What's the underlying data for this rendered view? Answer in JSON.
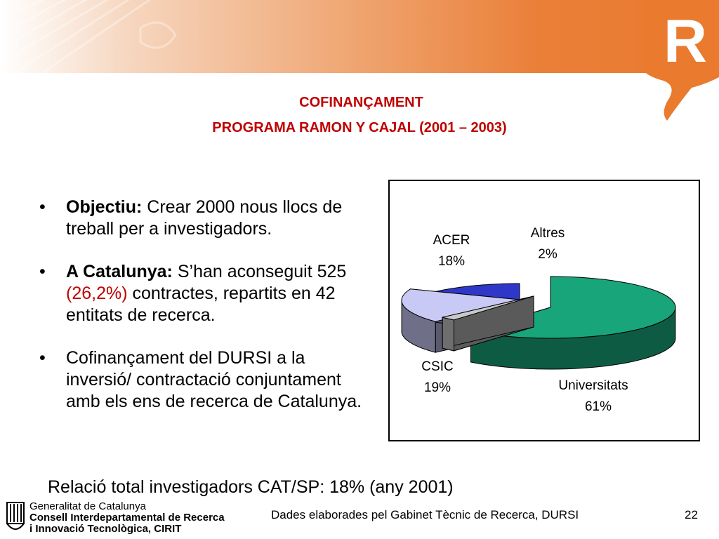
{
  "header": {
    "title_line1": "COFINANÇAMENT",
    "title_line2": "PROGRAMA RAMON Y CAJAL (2001 – 2003)",
    "logo_letter": "R"
  },
  "bullets": [
    {
      "label": "Objectiu:",
      "text": " Crear 2000 nous llocs de treball per a investigadors."
    },
    {
      "label": "A Catalunya:",
      "text_before": " S’han aconseguit 525 ",
      "highlight": "(26,2%)",
      "text_after": " contractes, repartits en 42 entitats de recerca."
    },
    {
      "text": "Cofinançament del DURSI a la inversió/ contractació conjuntament amb els ens de recerca de Catalunya."
    }
  ],
  "summary": "Relació total investigadors CAT/SP: 18% (any 2001)",
  "footer": {
    "org_line1": "Generalitat de Catalunya",
    "org_line2": "Consell Interdepartamental de Recerca",
    "org_line3": "i Innovació Tecnològica, CIRIT",
    "source": "Dades elaborades pel Gabinet Tècnic de Recerca, DURSI",
    "page": "22"
  },
  "colors": {
    "title": "#c00000",
    "header_orange": "#e97a2e"
  },
  "chart_data": {
    "type": "pie",
    "style": "3d-exploded",
    "slices": [
      {
        "label": "Universitats",
        "value": 61,
        "value_label": "61%",
        "color": "#19a57a"
      },
      {
        "label": "Altres",
        "value": 2,
        "value_label": "2%",
        "color": "#c8c8c8"
      },
      {
        "label": "ACER",
        "value": 18,
        "value_label": "18%",
        "color": "#c9c9f5"
      },
      {
        "label": "CSIC",
        "value": 19,
        "value_label": "19%",
        "color": "#2e37c8"
      }
    ]
  }
}
